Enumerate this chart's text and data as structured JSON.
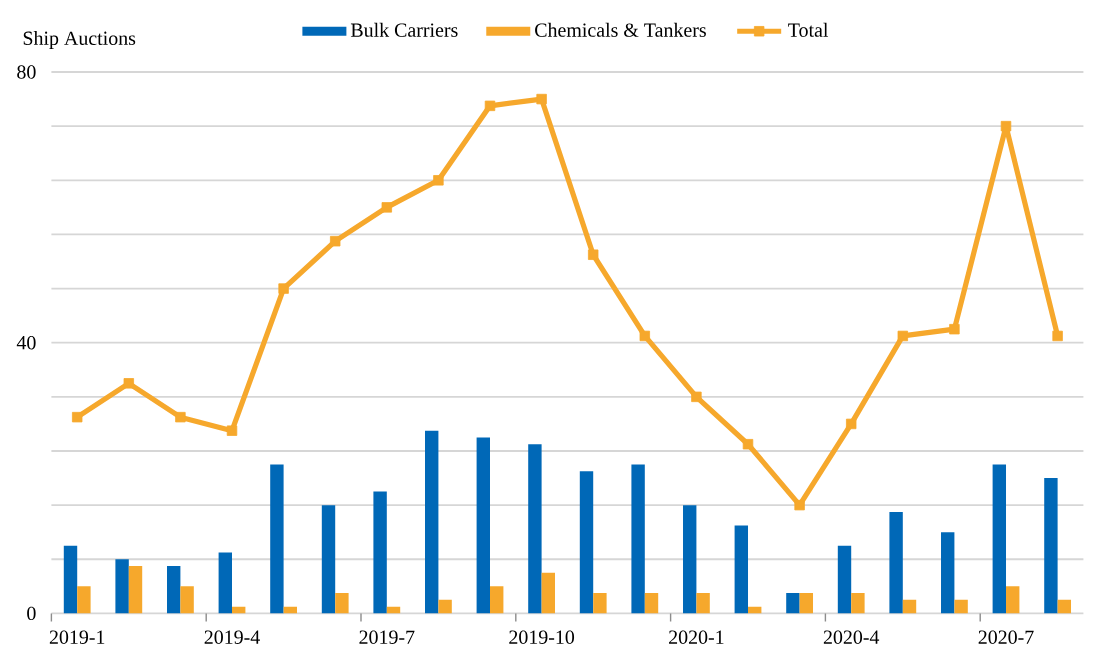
{
  "chart_data": {
    "type": "bar",
    "ylabel": "Ship Auctions",
    "categories": [
      "2019-1",
      null,
      null,
      "2019-4",
      null,
      null,
      "2019-7",
      null,
      null,
      "2019-10",
      null,
      null,
      "2020-1",
      null,
      null,
      "2020-4",
      null,
      null,
      "2020-7",
      null
    ],
    "series": [
      {
        "name": "Bulk Carriers",
        "color": "#0068B7",
        "values": [
          10,
          8,
          7,
          9,
          22,
          16,
          18,
          27,
          26,
          25,
          21,
          22,
          16,
          13,
          3,
          10,
          15,
          12,
          22,
          20
        ]
      },
      {
        "name": "Chemicals & Tankers",
        "color": "#F6A82C",
        "values": [
          4,
          7,
          4,
          1,
          1,
          3,
          1,
          2,
          4,
          6,
          3,
          3,
          3,
          1,
          3,
          3,
          2,
          2,
          4,
          2
        ]
      },
      {
        "name": "Total",
        "type": "line",
        "color": "#F6A82C",
        "marker": "square",
        "values": [
          29,
          34,
          29,
          27,
          48,
          55,
          60,
          64,
          75,
          76,
          53,
          41,
          32,
          25,
          16,
          28,
          41,
          42,
          72,
          41
        ]
      }
    ],
    "ylim": [
      0,
      80
    ],
    "yticks": [
      0,
      {
        "value": 8,
        "label": null
      },
      {
        "value": 16,
        "label": null
      },
      {
        "value": 24,
        "label": null
      },
      {
        "value": 32,
        "label": null
      },
      40,
      {
        "value": 48,
        "label": null
      },
      {
        "value": 56,
        "label": null
      },
      {
        "value": 64,
        "label": null
      },
      {
        "value": 72,
        "label": null
      },
      80
    ],
    "grid": "y",
    "legend": "top"
  }
}
